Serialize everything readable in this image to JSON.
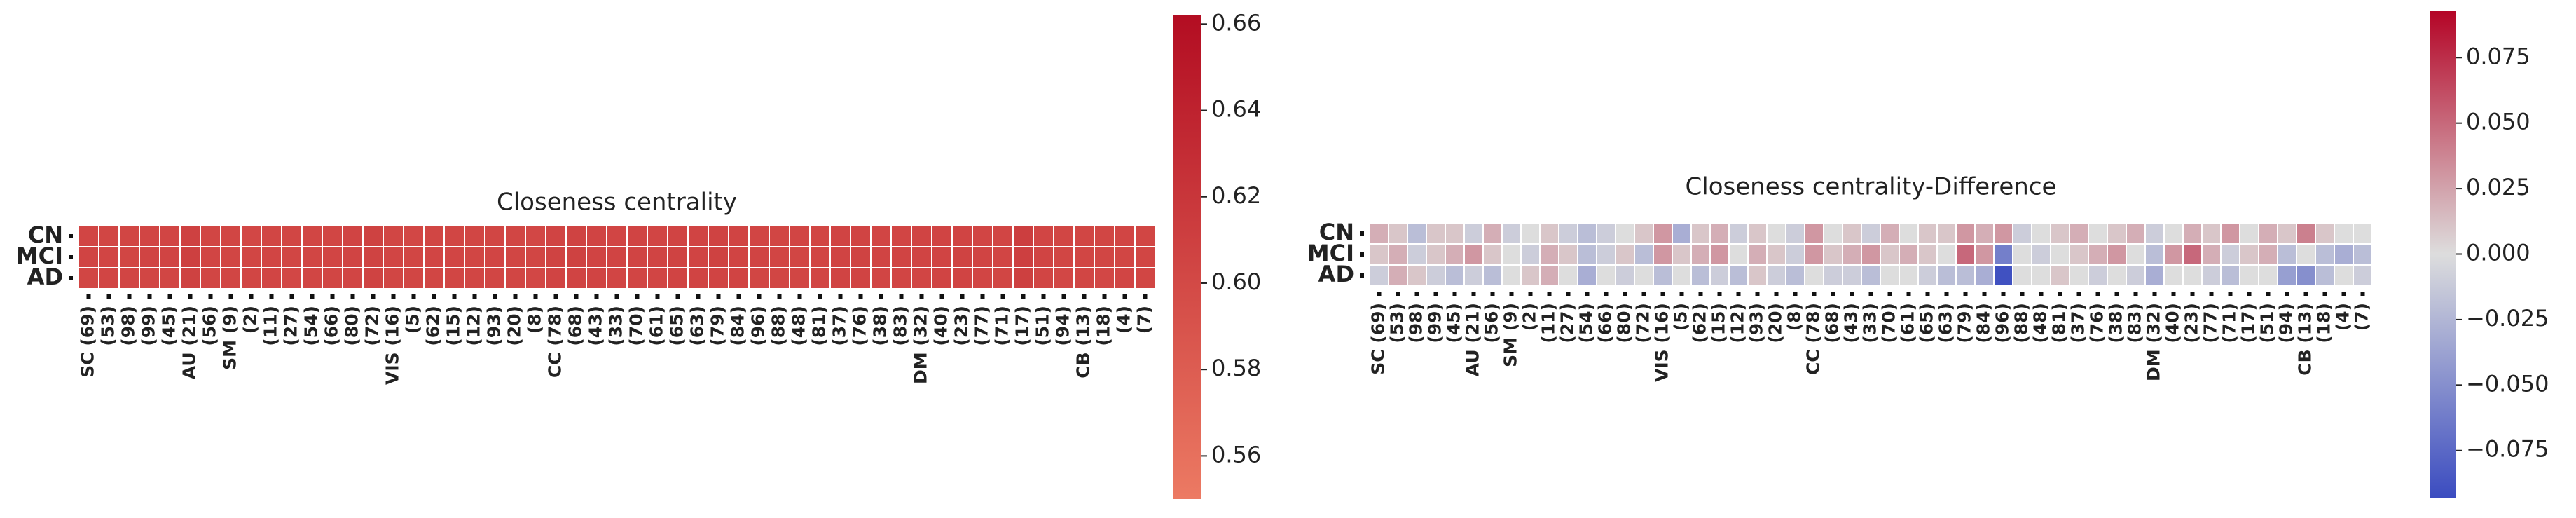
{
  "chart_data": [
    {
      "type": "heatmap",
      "title": "Closeness centrality",
      "rows": [
        "CN",
        "MCI",
        "AD"
      ],
      "columns": [
        "SC (69)",
        "(53)",
        "(98)",
        "(99)",
        "(45)",
        "AU (21)",
        "(56)",
        "SM (9)",
        "(2)",
        "(11)",
        "(27)",
        "(54)",
        "(66)",
        "(80)",
        "(72)",
        "VIS (16)",
        "(5)",
        "(62)",
        "(15)",
        "(12)",
        "(93)",
        "(20)",
        "(8)",
        "CC (78)",
        "(68)",
        "(43)",
        "(33)",
        "(70)",
        "(61)",
        "(65)",
        "(63)",
        "(79)",
        "(84)",
        "(96)",
        "(88)",
        "(48)",
        "(81)",
        "(37)",
        "(76)",
        "(38)",
        "(83)",
        "DM (32)",
        "(40)",
        "(23)",
        "(77)",
        "(71)",
        "(17)",
        "(51)",
        "(94)",
        "CB (13)",
        "(18)",
        "(4)",
        "(7)"
      ],
      "values": [
        [
          0.604,
          0.603,
          0.603,
          0.604,
          0.604,
          0.609,
          0.603,
          0.603,
          0.602,
          0.603,
          0.603,
          0.603,
          0.603,
          0.605,
          0.608,
          0.603,
          0.602,
          0.603,
          0.603,
          0.603,
          0.603,
          0.603,
          0.602,
          0.606,
          0.607,
          0.605,
          0.604,
          0.605,
          0.604,
          0.606,
          0.605,
          0.607,
          0.605,
          0.604,
          0.603,
          0.604,
          0.603,
          0.605,
          0.606,
          0.604,
          0.604,
          0.605,
          0.605,
          0.606,
          0.604,
          0.604,
          0.612,
          0.604,
          0.603,
          0.603,
          0.603,
          0.604,
          0.603
        ],
        [
          0.605,
          0.604,
          0.603,
          0.605,
          0.605,
          0.61,
          0.604,
          0.603,
          0.603,
          0.604,
          0.603,
          0.603,
          0.604,
          0.606,
          0.607,
          0.604,
          0.603,
          0.604,
          0.604,
          0.603,
          0.604,
          0.603,
          0.603,
          0.607,
          0.608,
          0.606,
          0.605,
          0.606,
          0.605,
          0.607,
          0.606,
          0.608,
          0.606,
          0.606,
          0.604,
          0.603,
          0.604,
          0.606,
          0.607,
          0.605,
          0.605,
          0.606,
          0.605,
          0.607,
          0.605,
          0.604,
          0.611,
          0.605,
          0.603,
          0.603,
          0.603,
          0.603,
          0.603
        ],
        [
          0.603,
          0.604,
          0.604,
          0.603,
          0.603,
          0.608,
          0.603,
          0.603,
          0.603,
          0.604,
          0.602,
          0.603,
          0.603,
          0.604,
          0.607,
          0.603,
          0.603,
          0.603,
          0.603,
          0.603,
          0.603,
          0.603,
          0.602,
          0.606,
          0.606,
          0.605,
          0.604,
          0.604,
          0.604,
          0.605,
          0.605,
          0.606,
          0.605,
          0.603,
          0.603,
          0.603,
          0.603,
          0.605,
          0.605,
          0.604,
          0.604,
          0.604,
          0.605,
          0.605,
          0.604,
          0.603,
          0.61,
          0.604,
          0.602,
          0.603,
          0.602,
          0.604,
          0.603
        ]
      ],
      "colors": [
        "#ec7a63",
        "#b30d22"
      ],
      "clim": [
        0.55,
        0.662
      ],
      "ticks": [
        0.56,
        0.58,
        {
          "value": 0.6,
          "label": "0.60"
        },
        0.62,
        0.64,
        0.66
      ]
    },
    {
      "type": "heatmap",
      "title": "Closeness centrality-Difference",
      "rows": [
        "CN",
        "MCI",
        "AD"
      ],
      "columns": [
        "SC (69)",
        "(53)",
        "(98)",
        "(99)",
        "(45)",
        "AU (21)",
        "(56)",
        "SM (9)",
        "(2)",
        "(11)",
        "(27)",
        "(54)",
        "(66)",
        "(80)",
        "(72)",
        "VIS (16)",
        "(5)",
        "(62)",
        "(15)",
        "(12)",
        "(93)",
        "(20)",
        "(8)",
        "CC (78)",
        "(68)",
        "(43)",
        "(33)",
        "(70)",
        "(61)",
        "(65)",
        "(63)",
        "(79)",
        "(84)",
        "(96)",
        "(88)",
        "(48)",
        "(81)",
        "(37)",
        "(76)",
        "(38)",
        "(83)",
        "DM (32)",
        "(40)",
        "(23)",
        "(77)",
        "(71)",
        "(17)",
        "(51)",
        "(94)",
        "CB (13)",
        "(18)",
        "(4)",
        "(7)"
      ],
      "values": [
        [
          0.02,
          0.01,
          -0.02,
          0.01,
          0.01,
          -0.01,
          0.02,
          -0.01,
          0,
          0.01,
          -0.01,
          -0.02,
          -0.01,
          0,
          0.01,
          0.03,
          -0.03,
          0.01,
          0.02,
          -0.01,
          0.01,
          0,
          -0.01,
          0.03,
          0,
          0.01,
          -0.01,
          0.02,
          0,
          0.01,
          0.01,
          0.03,
          0.02,
          0.03,
          -0.01,
          0,
          0.01,
          0.02,
          0,
          0.01,
          0.02,
          -0.01,
          0,
          0.02,
          0.01,
          0.03,
          0,
          0.02,
          0.01,
          0.04,
          0.01,
          0,
          0
        ],
        [
          0.01,
          0.02,
          -0.01,
          0.01,
          0.02,
          0.03,
          0.01,
          0,
          -0.01,
          0.02,
          0.01,
          -0.02,
          -0.01,
          0.01,
          -0.02,
          0.03,
          0.01,
          0.02,
          0.03,
          0,
          0.02,
          0.01,
          -0.01,
          0.03,
          0.01,
          0.02,
          0.03,
          0.01,
          0.02,
          0.01,
          0,
          0.05,
          0.03,
          -0.06,
          0,
          -0.01,
          0,
          0.01,
          0.02,
          0.03,
          0,
          -0.02,
          0.03,
          0.05,
          0.02,
          -0.01,
          0.01,
          0.02,
          -0.02,
          0,
          -0.02,
          -0.03,
          -0.02
        ],
        [
          -0.01,
          0.02,
          0.01,
          -0.01,
          -0.02,
          -0.01,
          -0.02,
          0,
          0.01,
          0.02,
          0,
          -0.03,
          0,
          -0.01,
          0,
          -0.02,
          0,
          -0.02,
          -0.01,
          -0.02,
          0.01,
          -0.01,
          -0.02,
          0,
          -0.01,
          -0.01,
          -0.02,
          0,
          0,
          -0.01,
          -0.02,
          -0.02,
          -0.03,
          -0.09,
          0,
          0,
          0.01,
          0,
          -0.01,
          0,
          -0.01,
          -0.03,
          0,
          0,
          -0.01,
          -0.02,
          0,
          0,
          -0.04,
          -0.05,
          -0.02,
          0,
          -0.01
        ]
      ],
      "colors": [
        "#3b4cc0",
        "#dddddd",
        "#b40426"
      ],
      "clim": [
        -0.093,
        0.093
      ],
      "ticks": [
        {
          "value": 0.075,
          "label": "0.075"
        },
        {
          "value": 0.05,
          "label": "0.050"
        },
        {
          "value": 0.025,
          "label": "0.025"
        },
        {
          "value": 0,
          "label": "0.000"
        },
        {
          "value": -0.025,
          "label": "−0.025"
        },
        {
          "value": -0.05,
          "label": "−0.050"
        },
        {
          "value": -0.075,
          "label": "−0.075"
        }
      ]
    }
  ]
}
